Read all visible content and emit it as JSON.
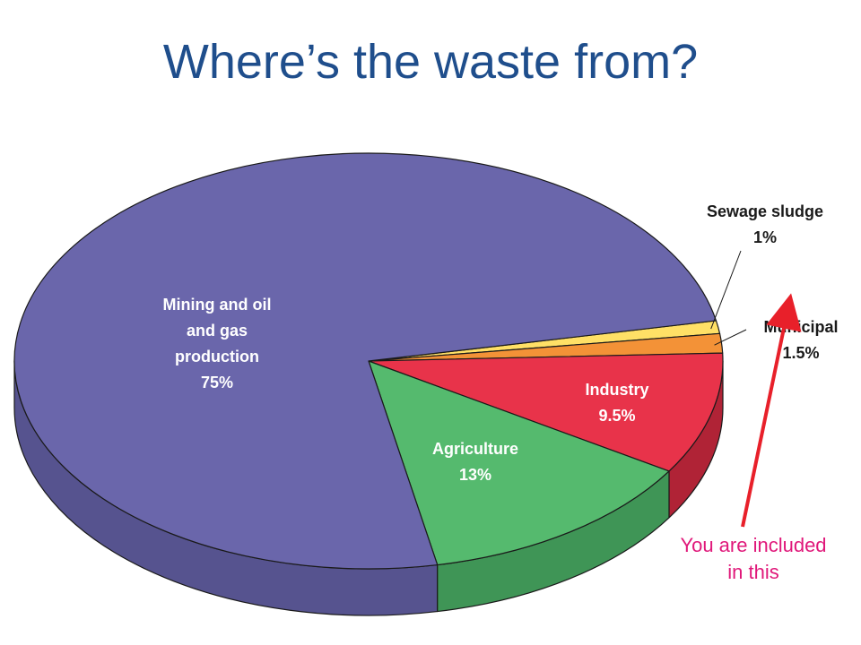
{
  "title": "Where’s the waste from?",
  "chart_data": {
    "type": "pie",
    "style": "3d",
    "unit": "%",
    "slices": [
      {
        "name": "Sewage sludge",
        "value": 1,
        "label_lines": [
          "Sewage sludge",
          "1%"
        ],
        "color": "#ffe066",
        "side_color": "#d8b93c",
        "label_color": "#1a1a1a"
      },
      {
        "name": "Municipal",
        "value": 1.5,
        "label_lines": [
          "Municipal",
          "1.5%"
        ],
        "color": "#f39237",
        "side_color": "#c76e20",
        "label_color": "#1a1a1a"
      },
      {
        "name": "Industry",
        "value": 9.5,
        "label_lines": [
          "Industry",
          "9.5%"
        ],
        "color": "#e8334a",
        "side_color": "#b02336",
        "label_color": "#ffffff"
      },
      {
        "name": "Agriculture",
        "value": 13,
        "label_lines": [
          "Agriculture",
          "13%"
        ],
        "color": "#55ba6e",
        "side_color": "#3f9556",
        "label_color": "#ffffff"
      },
      {
        "name": "Mining and oil and gas production",
        "value": 75,
        "label_lines": [
          "Mining and oil",
          "and gas",
          "production",
          "75%"
        ],
        "color": "#6a66ab",
        "side_color": "#56538f",
        "label_color": "#ffffff"
      }
    ],
    "annotation": {
      "lines": [
        "You are included",
        "in this"
      ],
      "color": "#e0187a",
      "arrow_color": "#e8202a",
      "points_to": "Municipal"
    }
  }
}
